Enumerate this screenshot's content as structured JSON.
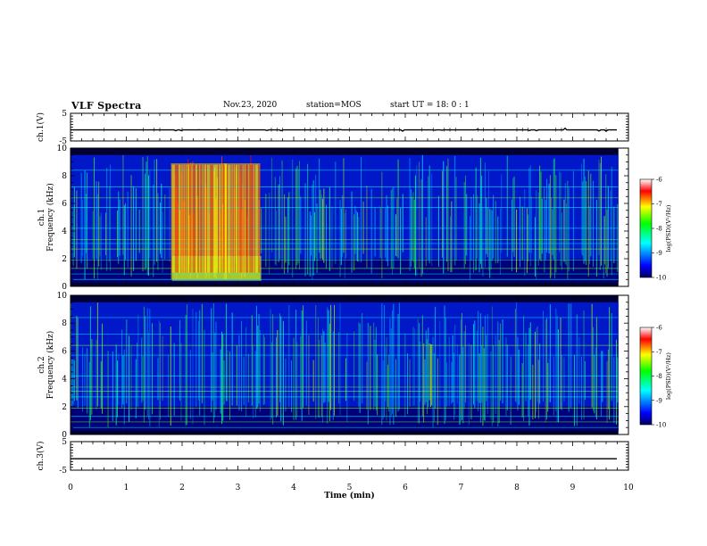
{
  "header": {
    "title": "VLF Spectra",
    "date": "Nov.23, 2020",
    "station": "station=MOS",
    "start": "start  UT =   18: 0  : 1"
  },
  "chart_data": {
    "type": "heatmap",
    "xlabel": "Time (min)",
    "xlim": [
      0,
      10
    ],
    "xticks": [
      "0",
      "1",
      "2",
      "3",
      "4",
      "5",
      "6",
      "7",
      "8",
      "9",
      "10"
    ],
    "panels": [
      {
        "id": "ch1-waveform",
        "ylabel": "ch.1(V)",
        "ylim": [
          -5,
          5
        ],
        "yticks": [
          "5",
          "-5"
        ]
      },
      {
        "id": "ch1-spectrogram",
        "ylabel_line1": "ch.1",
        "ylabel_line2": "Frequency (kHz)",
        "ylim": [
          0,
          10
        ],
        "yticks": [
          "0",
          "2",
          "4",
          "6",
          "8",
          "10"
        ],
        "intense_intervals_min": [
          [
            1.8,
            2.8
          ],
          [
            2.75,
            3.4
          ]
        ]
      },
      {
        "id": "ch2-spectrogram",
        "ylabel_line1": "ch.2",
        "ylabel_line2": "Frequency (kHz)",
        "ylim": [
          0,
          10
        ],
        "yticks": [
          "0",
          "2",
          "4",
          "6",
          "8",
          "10"
        ]
      },
      {
        "id": "ch3-waveform",
        "ylabel": "ch.3(V)",
        "ylim": [
          -5,
          5
        ],
        "yticks": [
          "5",
          "-5"
        ]
      }
    ],
    "colorbar": {
      "label": "log(PSD)(V²/Hz)",
      "range": [
        -10,
        -6
      ],
      "ticks": [
        "-6",
        "-7",
        "-8",
        "-9",
        "-10"
      ],
      "colors": [
        "#000080",
        "#0000ff",
        "#00ffff",
        "#00ff00",
        "#ffff00",
        "#ff0000",
        "#ffffff"
      ]
    }
  }
}
